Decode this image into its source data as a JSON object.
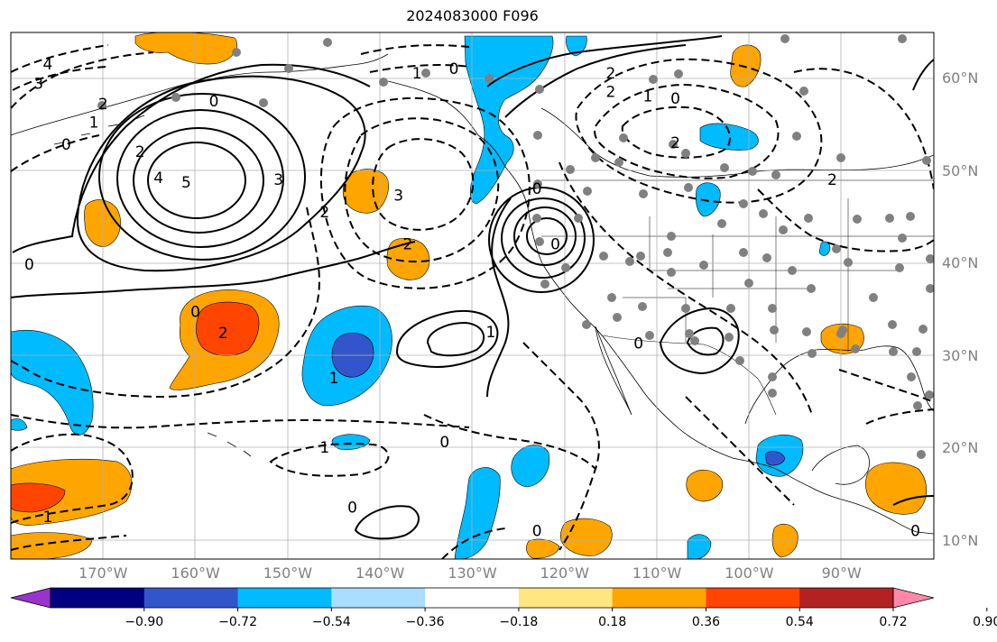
{
  "title": "2024083000 F096",
  "map": {
    "projection": "PlateCarree",
    "extent_lon": [
      -180,
      -80
    ],
    "extent_lat": [
      8,
      65
    ],
    "gridlines": true,
    "grid_color": "#b0b0b0",
    "lat_labels": [
      {
        "lat": 60,
        "text": "60°N"
      },
      {
        "lat": 50,
        "text": "50°N"
      },
      {
        "lat": 40,
        "text": "40°N"
      },
      {
        "lat": 30,
        "text": "30°N"
      },
      {
        "lat": 20,
        "text": "20°N"
      },
      {
        "lat": 10,
        "text": "10°N"
      }
    ],
    "lon_labels": [
      {
        "lon": -170,
        "text": "170°W"
      },
      {
        "lon": -160,
        "text": "160°W"
      },
      {
        "lon": -150,
        "text": "150°W"
      },
      {
        "lon": -140,
        "text": "140°W"
      },
      {
        "lon": -130,
        "text": "130°W"
      },
      {
        "lon": -120,
        "text": "120°W"
      },
      {
        "lon": -110,
        "text": "110°W"
      },
      {
        "lon": -100,
        "text": "100°W"
      },
      {
        "lon": -90,
        "text": "90°W"
      }
    ],
    "contour_labels": [
      {
        "text": "4",
        "lon": -176,
        "lat": 61.5
      },
      {
        "text": "3",
        "lon": -177,
        "lat": 59.4
      },
      {
        "text": "2",
        "lon": -170,
        "lat": 57.2
      },
      {
        "text": "1",
        "lon": -171,
        "lat": 55.2
      },
      {
        "text": "0",
        "lon": -174,
        "lat": 52.8
      },
      {
        "text": "0",
        "lon": -158,
        "lat": 57.5
      },
      {
        "text": "2",
        "lon": -166,
        "lat": 52.0
      },
      {
        "text": "4",
        "lon": -164,
        "lat": 49.2
      },
      {
        "text": "5",
        "lon": -161,
        "lat": 48.7
      },
      {
        "text": "3",
        "lon": -151,
        "lat": 49.0
      },
      {
        "text": "2",
        "lon": -146,
        "lat": 45.5
      },
      {
        "text": "3",
        "lon": -138,
        "lat": 47.3
      },
      {
        "text": "2",
        "lon": -137,
        "lat": 42.0
      },
      {
        "text": "0",
        "lon": -178,
        "lat": 39.8
      },
      {
        "text": "0",
        "lon": -160,
        "lat": 34.7
      },
      {
        "text": "2",
        "lon": -157,
        "lat": 32.4
      },
      {
        "text": "1",
        "lon": -145,
        "lat": 27.5
      },
      {
        "text": "1",
        "lon": -128,
        "lat": 32.5
      },
      {
        "text": "0",
        "lon": -123,
        "lat": 48.0
      },
      {
        "text": "0",
        "lon": -121,
        "lat": 42.0
      },
      {
        "text": "0",
        "lon": -112,
        "lat": 31.3
      },
      {
        "text": "1",
        "lon": -136,
        "lat": 60.5
      },
      {
        "text": "0",
        "lon": -132,
        "lat": 61.0
      },
      {
        "text": "2",
        "lon": -115,
        "lat": 58.5
      },
      {
        "text": "1",
        "lon": -111,
        "lat": 58.0
      },
      {
        "text": "0",
        "lon": -108,
        "lat": 57.8
      },
      {
        "text": "2",
        "lon": -108,
        "lat": 53.0
      },
      {
        "text": "2",
        "lon": -91,
        "lat": 49.0
      },
      {
        "text": "2",
        "lon": -115,
        "lat": 60.5
      },
      {
        "text": "1",
        "lon": -146,
        "lat": 20.0
      },
      {
        "text": "0",
        "lon": -133,
        "lat": 20.6
      },
      {
        "text": "0",
        "lon": -143,
        "lat": 13.5
      },
      {
        "text": "0",
        "lon": -123,
        "lat": 11.0
      },
      {
        "text": "1",
        "lon": -176,
        "lat": 12.5
      },
      {
        "text": "0",
        "lon": -82,
        "lat": 11.0
      }
    ]
  },
  "colorbar": {
    "extend": "both",
    "colors": [
      "#9933cc",
      "#000080",
      "#3355cc",
      "#00bbff",
      "#aaddff",
      "#ffffff",
      "#ffe680",
      "#ffa500",
      "#ff4500",
      "#b22222",
      "#ff88aa"
    ],
    "ticks": [
      "−0.90",
      "−0.72",
      "−0.54",
      "−0.36",
      "−0.18",
      "0.18",
      "0.36",
      "0.54",
      "0.72",
      "0.90"
    ]
  }
}
